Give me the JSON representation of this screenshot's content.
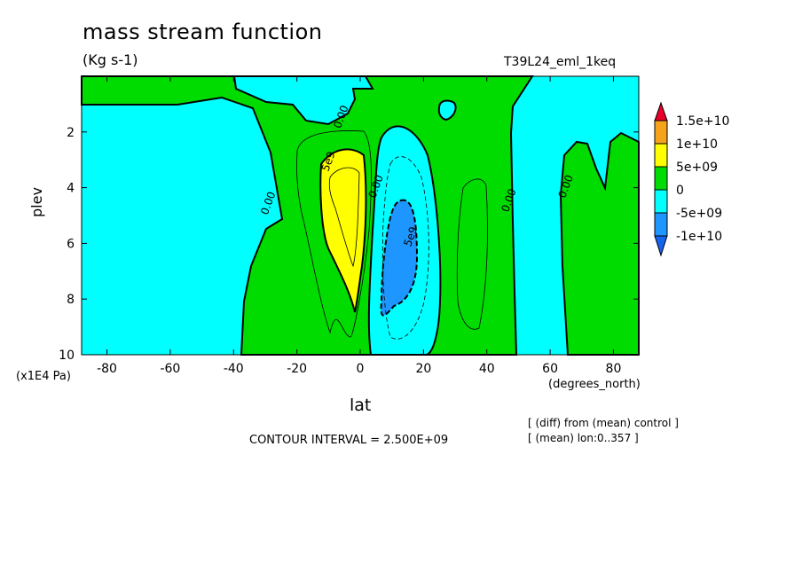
{
  "chart_data": {
    "type": "contour",
    "title": "mass stream function",
    "units": "(Kg s-1)",
    "run_name": "T39L24_eml_1keq",
    "xlabel": "lat",
    "x_units": "(degrees_north)",
    "ylabel": "plev",
    "y_units": "(x1E4 Pa)",
    "xlim": [
      -88,
      88
    ],
    "ylim": [
      10,
      0
    ],
    "x_ticks": [
      -80,
      -60,
      -40,
      -20,
      0,
      20,
      40,
      60,
      80
    ],
    "y_ticks": [
      2,
      4,
      6,
      8,
      10
    ],
    "contour_interval": "CONTOUR INTERVAL = 2.500E+09",
    "notes": [
      "[ (diff) from (mean) control ]",
      "[ (mean) lon:0..357 ]"
    ],
    "colorbar": [
      {
        "label": "1.5e+10",
        "color": "#e8002a"
      },
      {
        "label": "1e+10",
        "color": "#f5a31a"
      },
      {
        "label": "5e+09",
        "color": "#ffff00"
      },
      {
        "label": "0",
        "color": "#00dc00"
      },
      {
        "label": "-5e+09",
        "color": "#00ffff"
      },
      {
        "label": "-1e+10",
        "color": "#1e96ff"
      }
    ],
    "bottom_arrow_color": "#1464f0",
    "fill_colors": {
      "positive": "#00dc00",
      "strong_positive": "#ffff00",
      "negative": "#00ffff",
      "strong_negative": "#1e96ff"
    },
    "contour_labels": [
      {
        "text": "0.00",
        "lat": -28,
        "plev": 4.6
      },
      {
        "text": "0.00",
        "lat": -5,
        "plev": 1.5
      },
      {
        "text": "5e9",
        "lat": -9,
        "plev": 3.1
      },
      {
        "text": "0.00",
        "lat": 6,
        "plev": 4.0
      },
      {
        "text": "5e9",
        "lat": 17,
        "plev": 5.8
      },
      {
        "text": "0.00",
        "lat": 48,
        "plev": 4.5
      },
      {
        "text": "0.00",
        "lat": 66,
        "plev": 4.0
      }
    ]
  }
}
